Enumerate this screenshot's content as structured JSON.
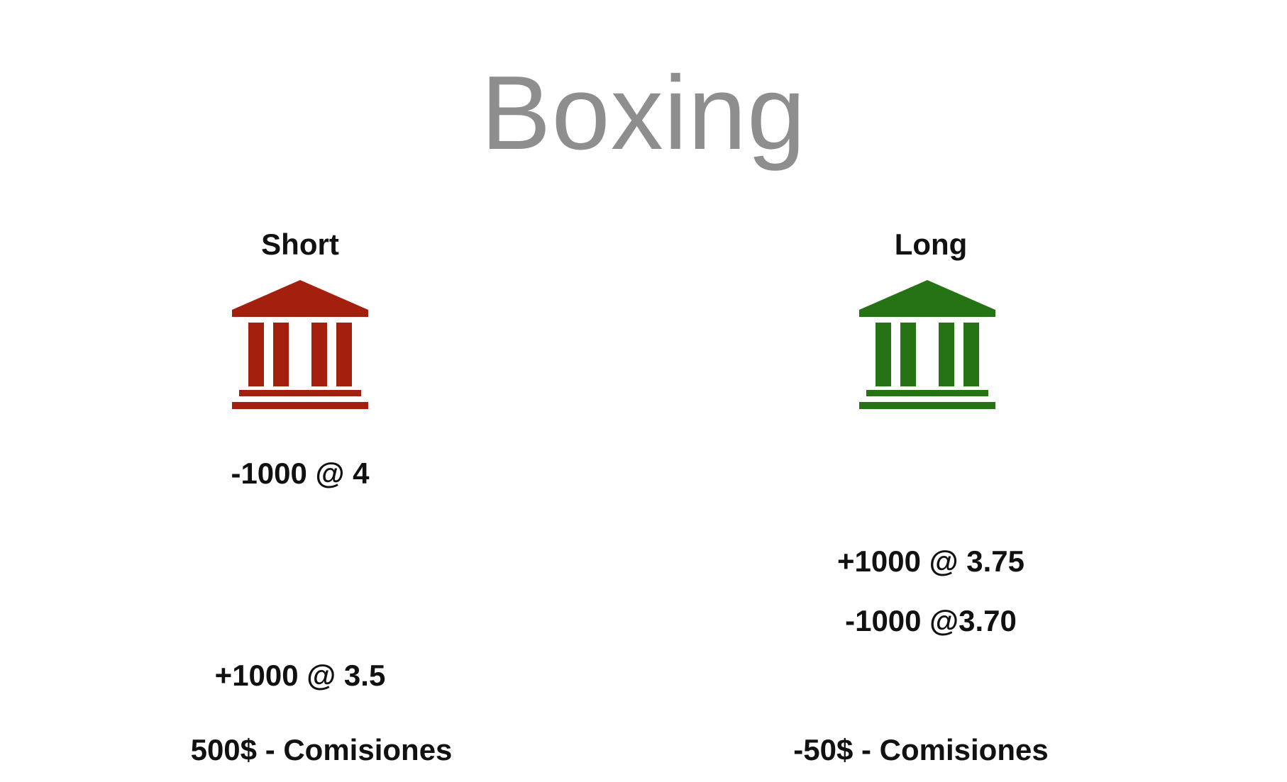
{
  "title": "Boxing",
  "colors": {
    "title": "#8e8e8e",
    "short_accent": "#a31f0e",
    "long_accent": "#267315",
    "text": "#111111"
  },
  "short": {
    "label": "Short",
    "icon": "bank-building-icon",
    "open_trade": "-1000 @ 4",
    "close_trade": "+1000 @ 3.5",
    "result": "500$ - Comisiones"
  },
  "long": {
    "label": "Long",
    "icon": "bank-building-icon",
    "open_trade": "+1000 @ 3.75",
    "close_trade": "-1000 @3.70",
    "result": "-50$ - Comisiones"
  }
}
